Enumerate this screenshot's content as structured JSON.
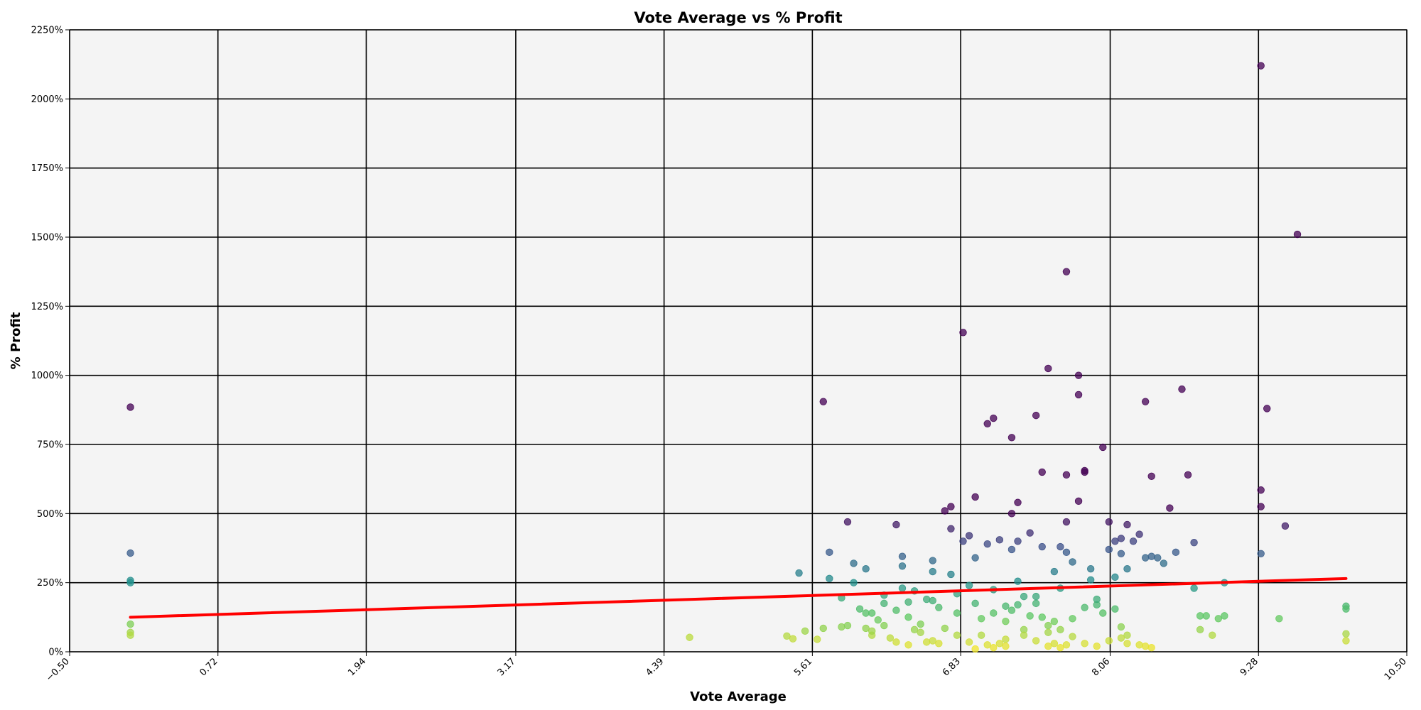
{
  "chart_data": {
    "type": "scatter",
    "title": "Vote Average vs % Profit",
    "xlabel": "Vote Average",
    "ylabel": "% Profit",
    "xlim": [
      -0.5,
      10.5
    ],
    "ylim": [
      0,
      2250
    ],
    "x_ticks": [
      -0.5,
      0.72,
      1.94,
      3.17,
      4.39,
      5.61,
      6.83,
      8.06,
      9.28,
      10.5
    ],
    "x_tick_labels": [
      "−0.50",
      "0.72",
      "1.94",
      "3.17",
      "4.39",
      "5.61",
      "6.83",
      "8.06",
      "9.28",
      "10.50"
    ],
    "y_ticks": [
      0,
      250,
      500,
      750,
      1000,
      1250,
      1500,
      1750,
      2000,
      2250
    ],
    "y_tick_labels": [
      "0%",
      "250%",
      "500%",
      "750%",
      "1000%",
      "1250%",
      "1500%",
      "1750%",
      "2000%",
      "2250%"
    ],
    "grid": true,
    "colormap": "viridis (reversed by profit)",
    "trendline": {
      "color": "#ff0000",
      "x": [
        0.0,
        10.0
      ],
      "y": [
        125,
        265
      ]
    },
    "points": [
      [
        0.0,
        885
      ],
      [
        0.0,
        357
      ],
      [
        0.0,
        258
      ],
      [
        0.0,
        250
      ],
      [
        0.0,
        100
      ],
      [
        0.0,
        70
      ],
      [
        0.0,
        60
      ],
      [
        4.6,
        52
      ],
      [
        5.4,
        57
      ],
      [
        5.45,
        47
      ],
      [
        5.5,
        285
      ],
      [
        5.55,
        75
      ],
      [
        5.65,
        45
      ],
      [
        5.7,
        905
      ],
      [
        5.75,
        265
      ],
      [
        5.75,
        360
      ],
      [
        5.7,
        85
      ],
      [
        5.85,
        195
      ],
      [
        5.85,
        90
      ],
      [
        5.9,
        470
      ],
      [
        5.9,
        95
      ],
      [
        5.95,
        250
      ],
      [
        5.95,
        320
      ],
      [
        6.0,
        155
      ],
      [
        6.05,
        300
      ],
      [
        6.05,
        140
      ],
      [
        6.05,
        85
      ],
      [
        6.1,
        140
      ],
      [
        6.1,
        60
      ],
      [
        6.1,
        75
      ],
      [
        6.15,
        115
      ],
      [
        6.2,
        205
      ],
      [
        6.2,
        175
      ],
      [
        6.2,
        95
      ],
      [
        6.25,
        50
      ],
      [
        6.3,
        35
      ],
      [
        6.3,
        460
      ],
      [
        6.3,
        150
      ],
      [
        6.35,
        310
      ],
      [
        6.35,
        345
      ],
      [
        6.35,
        230
      ],
      [
        6.4,
        180
      ],
      [
        6.4,
        125
      ],
      [
        6.4,
        25
      ],
      [
        6.45,
        220
      ],
      [
        6.45,
        80
      ],
      [
        6.5,
        100
      ],
      [
        6.5,
        70
      ],
      [
        6.55,
        190
      ],
      [
        6.55,
        35
      ],
      [
        6.6,
        290
      ],
      [
        6.6,
        330
      ],
      [
        6.6,
        185
      ],
      [
        6.6,
        40
      ],
      [
        6.65,
        160
      ],
      [
        6.65,
        30
      ],
      [
        6.7,
        510
      ],
      [
        6.7,
        85
      ],
      [
        6.75,
        525
      ],
      [
        6.75,
        445
      ],
      [
        6.75,
        280
      ],
      [
        6.8,
        210
      ],
      [
        6.8,
        140
      ],
      [
        6.8,
        60
      ],
      [
        6.85,
        1155
      ],
      [
        6.85,
        400
      ],
      [
        6.9,
        420
      ],
      [
        6.9,
        240
      ],
      [
        6.9,
        35
      ],
      [
        6.95,
        560
      ],
      [
        6.95,
        340
      ],
      [
        6.95,
        175
      ],
      [
        7.0,
        120
      ],
      [
        7.0,
        60
      ],
      [
        7.05,
        825
      ],
      [
        7.05,
        390
      ],
      [
        7.1,
        845
      ],
      [
        7.1,
        225
      ],
      [
        7.1,
        140
      ],
      [
        7.15,
        405
      ],
      [
        7.2,
        165
      ],
      [
        7.2,
        110
      ],
      [
        7.2,
        45
      ],
      [
        7.25,
        775
      ],
      [
        7.25,
        500
      ],
      [
        7.25,
        370
      ],
      [
        7.3,
        400
      ],
      [
        7.3,
        540
      ],
      [
        7.3,
        255
      ],
      [
        7.35,
        200
      ],
      [
        7.35,
        80
      ],
      [
        7.4,
        430
      ],
      [
        7.45,
        855
      ],
      [
        7.45,
        175
      ],
      [
        7.5,
        650
      ],
      [
        7.5,
        380
      ],
      [
        7.5,
        125
      ],
      [
        7.55,
        1025
      ],
      [
        7.6,
        290
      ],
      [
        7.65,
        380
      ],
      [
        7.7,
        1375
      ],
      [
        7.7,
        640
      ],
      [
        7.7,
        470
      ],
      [
        7.7,
        360
      ],
      [
        7.75,
        325
      ],
      [
        7.8,
        1000
      ],
      [
        7.8,
        930
      ],
      [
        7.8,
        545
      ],
      [
        7.85,
        650
      ],
      [
        7.85,
        655
      ],
      [
        7.9,
        260
      ],
      [
        7.9,
        300
      ],
      [
        7.95,
        170
      ],
      [
        8.0,
        740
      ],
      [
        8.0,
        140
      ],
      [
        8.05,
        370
      ],
      [
        8.05,
        470
      ],
      [
        8.1,
        270
      ],
      [
        8.1,
        400
      ],
      [
        8.15,
        355
      ],
      [
        8.15,
        410
      ],
      [
        8.2,
        460
      ],
      [
        8.2,
        300
      ],
      [
        8.25,
        400
      ],
      [
        8.3,
        425
      ],
      [
        8.35,
        905
      ],
      [
        8.35,
        340
      ],
      [
        8.4,
        345
      ],
      [
        8.4,
        635
      ],
      [
        8.45,
        340
      ],
      [
        8.5,
        320
      ],
      [
        8.55,
        520
      ],
      [
        8.6,
        360
      ],
      [
        8.65,
        950
      ],
      [
        8.7,
        640
      ],
      [
        8.75,
        395
      ],
      [
        8.8,
        130
      ],
      [
        8.9,
        60
      ],
      [
        8.95,
        120
      ],
      [
        8.1,
        155
      ],
      [
        8.15,
        90
      ],
      [
        8.2,
        60
      ],
      [
        8.2,
        30
      ],
      [
        8.3,
        25
      ],
      [
        8.35,
        20
      ],
      [
        8.4,
        15
      ],
      [
        8.75,
        230
      ],
      [
        8.8,
        80
      ],
      [
        8.85,
        130
      ],
      [
        9.3,
        2120
      ],
      [
        9.3,
        585
      ],
      [
        9.3,
        525
      ],
      [
        9.3,
        355
      ],
      [
        9.35,
        880
      ],
      [
        9.5,
        455
      ],
      [
        9.6,
        1510
      ],
      [
        9.0,
        130
      ],
      [
        9.0,
        250
      ],
      [
        9.45,
        120
      ],
      [
        7.25,
        150
      ],
      [
        7.3,
        170
      ],
      [
        7.4,
        130
      ],
      [
        7.45,
        200
      ],
      [
        7.55,
        95
      ],
      [
        7.6,
        110
      ],
      [
        7.65,
        230
      ],
      [
        7.55,
        20
      ],
      [
        7.6,
        30
      ],
      [
        7.65,
        15
      ],
      [
        7.7,
        25
      ],
      [
        7.75,
        55
      ],
      [
        7.85,
        30
      ],
      [
        7.95,
        20
      ],
      [
        8.05,
        40
      ],
      [
        8.15,
        50
      ],
      [
        7.2,
        20
      ],
      [
        7.15,
        30
      ],
      [
        7.1,
        15
      ],
      [
        7.05,
        25
      ],
      [
        6.95,
        10
      ],
      [
        7.35,
        60
      ],
      [
        7.45,
        40
      ],
      [
        7.55,
        70
      ],
      [
        7.65,
        80
      ],
      [
        7.75,
        120
      ],
      [
        7.85,
        160
      ],
      [
        7.95,
        190
      ],
      [
        10.0,
        165
      ],
      [
        10.0,
        155
      ],
      [
        10.0,
        65
      ],
      [
        10.0,
        40
      ]
    ]
  }
}
